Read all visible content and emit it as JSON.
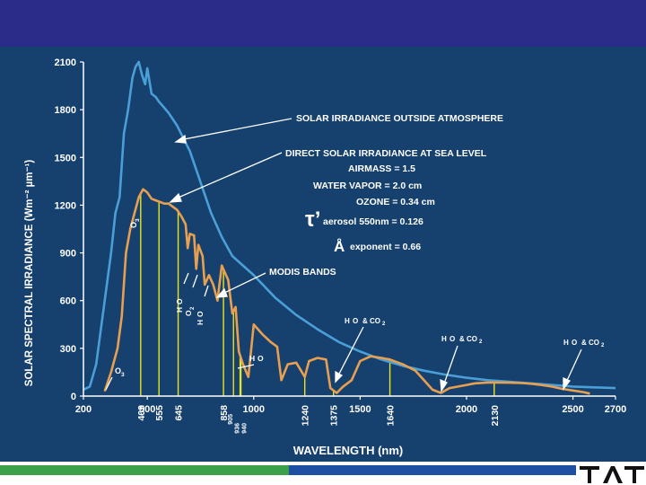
{
  "slide": {
    "top_bar_color": "#2b2b8a",
    "panel_color": "#16406e",
    "band_green": "#3aa04a",
    "band_blue": "#1e4fa3",
    "logo_text": "TAT"
  },
  "chart_data": {
    "type": "line",
    "xlabel": "WAVELENGTH (nm)",
    "ylabel": "SOLAR SPECTRAL IRRADIANCE (Wm⁻² µm⁻¹)",
    "xlim": [
      200,
      2700
    ],
    "ylim": [
      0,
      2100
    ],
    "x_ticks": [
      200,
      500,
      1000,
      1500,
      2000,
      2500,
      2700
    ],
    "y_ticks": [
      0,
      300,
      600,
      900,
      1200,
      1500,
      1800,
      2100
    ],
    "band_ticks": [
      469,
      555,
      645,
      858,
      905,
      936,
      940,
      1240,
      1375,
      1640,
      2130
    ],
    "colors": {
      "outside": "#4a9fd8",
      "sea_level": "#e8a050",
      "band_line": "#e6e61e",
      "text": "#ffffff",
      "axis": "#ffffff"
    },
    "series": [
      {
        "name": "SOLAR IRRADIANCE OUTSIDE ATMOSPHERE",
        "points": [
          [
            200,
            40
          ],
          [
            230,
            60
          ],
          [
            260,
            200
          ],
          [
            300,
            600
          ],
          [
            330,
            900
          ],
          [
            350,
            1150
          ],
          [
            370,
            1250
          ],
          [
            390,
            1650
          ],
          [
            410,
            1800
          ],
          [
            430,
            2000
          ],
          [
            445,
            2070
          ],
          [
            460,
            2100
          ],
          [
            475,
            2020
          ],
          [
            490,
            1960
          ],
          [
            500,
            2060
          ],
          [
            520,
            1900
          ],
          [
            540,
            1880
          ],
          [
            555,
            1850
          ],
          [
            575,
            1820
          ],
          [
            600,
            1780
          ],
          [
            640,
            1700
          ],
          [
            700,
            1540
          ],
          [
            800,
            1150
          ],
          [
            850,
            1000
          ],
          [
            900,
            880
          ],
          [
            1000,
            760
          ],
          [
            1100,
            620
          ],
          [
            1200,
            510
          ],
          [
            1300,
            420
          ],
          [
            1400,
            340
          ],
          [
            1500,
            280
          ],
          [
            1600,
            230
          ],
          [
            1700,
            190
          ],
          [
            1800,
            160
          ],
          [
            1900,
            135
          ],
          [
            2000,
            115
          ],
          [
            2100,
            100
          ],
          [
            2200,
            90
          ],
          [
            2300,
            80
          ],
          [
            2400,
            70
          ],
          [
            2500,
            60
          ],
          [
            2600,
            55
          ],
          [
            2700,
            50
          ]
        ]
      },
      {
        "name": "DIRECT SOLAR IRRADIANCE AT SEA LEVEL",
        "points": [
          [
            300,
            30
          ],
          [
            330,
            150
          ],
          [
            360,
            300
          ],
          [
            380,
            500
          ],
          [
            400,
            900
          ],
          [
            420,
            1050
          ],
          [
            440,
            1150
          ],
          [
            460,
            1250
          ],
          [
            480,
            1300
          ],
          [
            500,
            1280
          ],
          [
            520,
            1240
          ],
          [
            540,
            1230
          ],
          [
            560,
            1220
          ],
          [
            580,
            1210
          ],
          [
            600,
            1210
          ],
          [
            620,
            1190
          ],
          [
            640,
            1170
          ],
          [
            660,
            1130
          ],
          [
            680,
            1080
          ],
          [
            690,
            930
          ],
          [
            700,
            1020
          ],
          [
            720,
            1010
          ],
          [
            730,
            800
          ],
          [
            740,
            950
          ],
          [
            760,
            880
          ],
          [
            770,
            700
          ],
          [
            790,
            760
          ],
          [
            810,
            700
          ],
          [
            830,
            600
          ],
          [
            850,
            820
          ],
          [
            880,
            730
          ],
          [
            900,
            520
          ],
          [
            915,
            560
          ],
          [
            930,
            280
          ],
          [
            950,
            200
          ],
          [
            975,
            120
          ],
          [
            1000,
            450
          ],
          [
            1040,
            390
          ],
          [
            1080,
            340
          ],
          [
            1110,
            310
          ],
          [
            1130,
            100
          ],
          [
            1160,
            200
          ],
          [
            1200,
            210
          ],
          [
            1240,
            120
          ],
          [
            1260,
            220
          ],
          [
            1300,
            240
          ],
          [
            1340,
            230
          ],
          [
            1360,
            50
          ],
          [
            1390,
            20
          ],
          [
            1420,
            60
          ],
          [
            1460,
            100
          ],
          [
            1500,
            220
          ],
          [
            1550,
            250
          ],
          [
            1600,
            240
          ],
          [
            1640,
            230
          ],
          [
            1700,
            200
          ],
          [
            1760,
            160
          ],
          [
            1800,
            100
          ],
          [
            1840,
            40
          ],
          [
            1880,
            20
          ],
          [
            1920,
            50
          ],
          [
            1960,
            60
          ],
          [
            2000,
            70
          ],
          [
            2040,
            80
          ],
          [
            2100,
            85
          ],
          [
            2150,
            85
          ],
          [
            2200,
            84
          ],
          [
            2260,
            82
          ],
          [
            2300,
            78
          ],
          [
            2350,
            70
          ],
          [
            2400,
            60
          ],
          [
            2450,
            45
          ],
          [
            2500,
            35
          ],
          [
            2550,
            25
          ],
          [
            2580,
            15
          ]
        ]
      }
    ],
    "annotations": {
      "outside": "SOLAR IRRADIANCE OUTSIDE ATMOSPHERE",
      "sea_level": "DIRECT SOLAR IRRADIANCE AT SEA LEVEL",
      "airmass": "AIRMASS = 1.5",
      "water_vapor": "WATER VAPOR = 2.0 cm",
      "ozone": "OZONE = 0.34 cm",
      "tau_symbol": "τ’",
      "aerosol": "aerosol 550nm = 0.126",
      "angstrom_symbol": "Å",
      "exponent": "exponent = 0.66",
      "modis_bands": "MODIS BANDS",
      "o3": "O",
      "o2": "O",
      "h2o": "H",
      "h2o_co2": "H",
      "three": "3",
      "two": "2",
      "two_o": "O",
      "amp_co": "& CO"
    }
  }
}
